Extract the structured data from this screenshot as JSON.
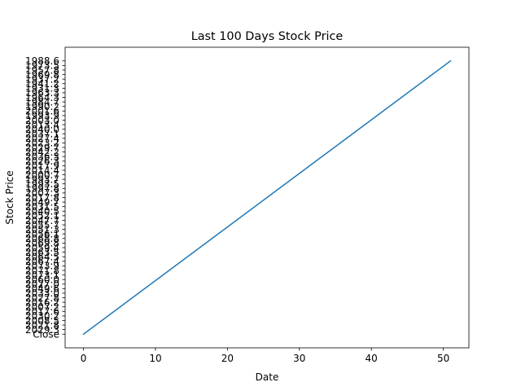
{
  "chart_data": {
    "type": "line",
    "title": "Last 100 Days Stock Price",
    "xlabel": "Date",
    "ylabel": "Stock Price",
    "xlim": [
      -2.55,
      53.55
    ],
    "x_ticks": [
      0,
      10,
      20,
      30,
      40,
      50
    ],
    "y_categories": [
      "Close",
      "2029.3",
      "2021.8",
      "2008.5",
      "2030.2",
      "2017.6",
      "2007.2",
      "2016.2",
      "2027.8",
      "2033.0",
      "2049.6",
      "2027.0",
      "2060.0",
      "2073.1",
      "2071.8",
      "2073.9",
      "2067.4",
      "2064.5",
      "2063.5",
      "2059.4",
      "2069.8",
      "2068.8",
      "2056.1",
      "2051.3",
      "2055.7",
      "2047.7",
      "2052.1",
      "2040.5",
      "2031.5",
      "2049.7",
      "2017.8",
      "2007.3",
      "1997.8",
      "1993.5",
      "1993.7",
      "2000.7",
      "2014.4",
      "2017.9",
      "2026.3",
      "2036.3",
      "2042.2",
      "2029.7",
      "2023.2",
      "2027.4",
      "2037.1",
      "2040.0",
      "2013.4",
      "2003.0",
      "1993.9",
      "2001.6",
      "1990.2",
      "1984.7",
      "1964.3",
      "1963.3",
      "1931.3",
      "1941.2",
      "1937.2",
      "1969.8",
      "1957.8",
      "1973.5",
      "1988.6"
    ],
    "series": [
      {
        "values": [
          [
            0,
            0
          ],
          [
            51,
            60
          ]
        ]
      }
    ],
    "grid": false,
    "line_color": "#1f77b4"
  }
}
